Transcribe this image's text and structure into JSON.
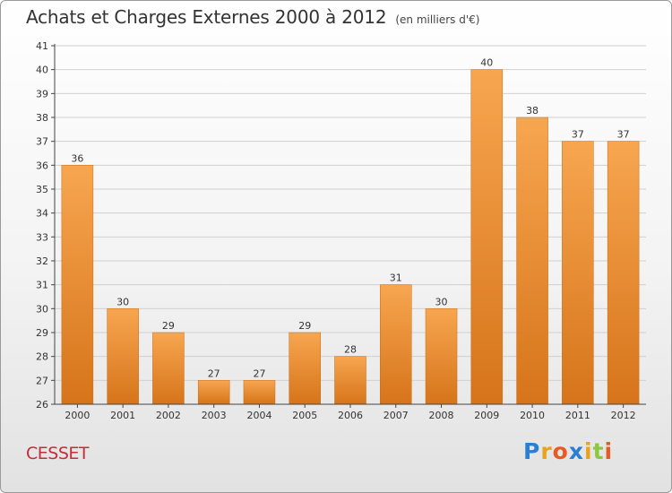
{
  "title": "Achats et Charges Externes 2000 à 2012",
  "subtitle": "(en milliers d'€)",
  "commune": "CESSET",
  "brand": {
    "letters": [
      "P",
      "r",
      "o",
      "x",
      "i",
      "t",
      "i"
    ],
    "colors": [
      "#2a7fd4",
      "#e8a31c",
      "#e85a24",
      "#2a7fd4",
      "#e8a31c",
      "#8dc63f",
      "#e85a24"
    ]
  },
  "colors": {
    "bar_light": "#f7a650",
    "bar_dark": "#d6741a",
    "grid": "#d0d0d0",
    "axis": "#444444",
    "text": "#333333"
  },
  "chart_data": {
    "type": "bar",
    "categories": [
      "2000",
      "2001",
      "2002",
      "2003",
      "2004",
      "2005",
      "2006",
      "2007",
      "2008",
      "2009",
      "2010",
      "2011",
      "2012"
    ],
    "values": [
      36,
      30,
      29,
      27,
      27,
      29,
      28,
      31,
      30,
      40,
      38,
      37,
      37
    ],
    "ylim": [
      26,
      41
    ],
    "yticks": [
      26,
      27,
      28,
      29,
      30,
      31,
      32,
      33,
      34,
      35,
      36,
      37,
      38,
      39,
      40,
      41
    ],
    "grid": true,
    "data_labels": true
  }
}
